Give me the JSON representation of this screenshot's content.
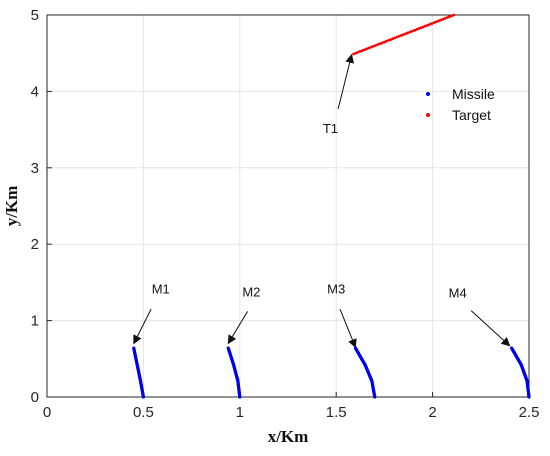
{
  "chart_data": {
    "type": "scatter",
    "xlabel": "x/Km",
    "ylabel": "y/Km",
    "xlim": [
      0,
      2.5
    ],
    "ylim": [
      0,
      5
    ],
    "xticks": [
      "0",
      "0.5",
      "1",
      "1.5",
      "2",
      "2.5"
    ],
    "yticks": [
      "0",
      "1",
      "2",
      "3",
      "4",
      "5"
    ],
    "grid": true,
    "legend": {
      "placement": "top-right"
    },
    "series": [
      {
        "name": "Missile",
        "color": "#0000ee",
        "curves": [
          {
            "label": "M1",
            "points": [
              [
                0.45,
                0.64
              ],
              [
                0.468,
                0.42
              ],
              [
                0.485,
                0.21
              ],
              [
                0.5,
                0.0
              ]
            ]
          },
          {
            "label": "M2",
            "points": [
              [
                0.94,
                0.64
              ],
              [
                0.968,
                0.42
              ],
              [
                0.99,
                0.21
              ],
              [
                1.0,
                0.0
              ]
            ]
          },
          {
            "label": "M3",
            "points": [
              [
                1.6,
                0.64
              ],
              [
                1.65,
                0.42
              ],
              [
                1.685,
                0.21
              ],
              [
                1.7,
                0.0
              ]
            ]
          },
          {
            "label": "M4",
            "points": [
              [
                2.41,
                0.64
              ],
              [
                2.46,
                0.42
              ],
              [
                2.49,
                0.21
              ],
              [
                2.5,
                0.0
              ]
            ]
          }
        ]
      },
      {
        "name": "Target",
        "color": "#ff0000",
        "curves": [
          {
            "label": "T1",
            "points": [
              [
                1.59,
                4.49
              ],
              [
                2.11,
                5.0
              ]
            ]
          }
        ]
      }
    ],
    "annotations": [
      {
        "text": "M1",
        "text_at": [
          0.59,
          1.42
        ],
        "arrow_from": [
          0.54,
          1.15
        ],
        "arrow_to": [
          0.45,
          0.7
        ]
      },
      {
        "text": "M2",
        "text_at": [
          1.06,
          1.38
        ],
        "arrow_from": [
          1.04,
          1.12
        ],
        "arrow_to": [
          0.94,
          0.7
        ]
      },
      {
        "text": "M3",
        "text_at": [
          1.5,
          1.42
        ],
        "arrow_from": [
          1.52,
          1.15
        ],
        "arrow_to": [
          1.6,
          0.65
        ]
      },
      {
        "text": "M4",
        "text_at": [
          2.13,
          1.37
        ],
        "arrow_from": [
          2.2,
          1.13
        ],
        "arrow_to": [
          2.4,
          0.67
        ]
      },
      {
        "text": "T1",
        "text_at": [
          1.47,
          3.52
        ],
        "arrow_from": [
          1.51,
          3.77
        ],
        "arrow_to": [
          1.58,
          4.48
        ]
      }
    ]
  }
}
